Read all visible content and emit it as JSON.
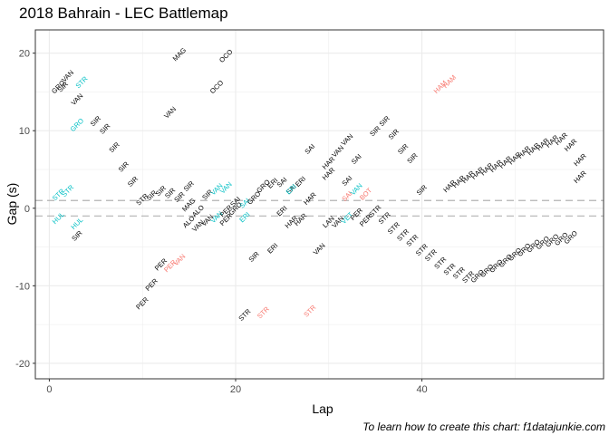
{
  "chart_data": {
    "type": "scatter",
    "title": "2018 Bahrain - LEC Battlemap",
    "xlabel": "Lap",
    "ylabel": "Gap (s)",
    "caption": "To learn how to create this chart: f1datajunkie.com",
    "xlim": [
      -1.5,
      59.5
    ],
    "ylim": [
      -22,
      23
    ],
    "xticks": [
      0,
      20,
      40
    ],
    "yticks": [
      -20,
      -10,
      0,
      10,
      20
    ],
    "grid": true,
    "legend": "none",
    "reference_lines": [
      1,
      -1
    ],
    "colors": {
      "default": "#000000",
      "highlight_a": "#00bfc4",
      "highlight_b": "#f8766d",
      "reference": "#b3b3b3",
      "grid": "#ebebeb",
      "border": "#333333"
    },
    "labels": [
      {
        "x": 1,
        "y": 15.6,
        "text": "GRO",
        "color": "#000000"
      },
      {
        "x": 1.5,
        "y": 15.6,
        "text": "SIR",
        "color": "#000000"
      },
      {
        "x": 2,
        "y": 17,
        "text": "VAN",
        "color": "#000000"
      },
      {
        "x": 3.5,
        "y": 16.2,
        "text": "STR",
        "color": "#00bfc4"
      },
      {
        "x": 3,
        "y": 14,
        "text": "VAN",
        "color": "#000000"
      },
      {
        "x": 5,
        "y": 11.2,
        "text": "SIR",
        "color": "#000000"
      },
      {
        "x": 3,
        "y": 10.7,
        "text": "GRO",
        "color": "#00bfc4"
      },
      {
        "x": 6,
        "y": 10.2,
        "text": "SIR",
        "color": "#000000"
      },
      {
        "x": 7,
        "y": 7.8,
        "text": "SIR",
        "color": "#000000"
      },
      {
        "x": 8,
        "y": 5.3,
        "text": "SIR",
        "color": "#000000"
      },
      {
        "x": 9,
        "y": 3.4,
        "text": "SIR",
        "color": "#000000"
      },
      {
        "x": 1,
        "y": 1.7,
        "text": "STR",
        "color": "#00bfc4"
      },
      {
        "x": 2,
        "y": 2.2,
        "text": "STR",
        "color": "#00bfc4"
      },
      {
        "x": 1,
        "y": -1.3,
        "text": "HUL",
        "color": "#00bfc4"
      },
      {
        "x": 3,
        "y": -2,
        "text": "HUL",
        "color": "#00bfc4"
      },
      {
        "x": 3,
        "y": -3.6,
        "text": "SIR",
        "color": "#000000"
      },
      {
        "x": 10,
        "y": 1.1,
        "text": "STR",
        "color": "#000000"
      },
      {
        "x": 11,
        "y": 1.6,
        "text": "SIR",
        "color": "#000000"
      },
      {
        "x": 12,
        "y": 2.2,
        "text": "SIR",
        "color": "#000000"
      },
      {
        "x": 14,
        "y": 19.8,
        "text": "MAG",
        "color": "#000000"
      },
      {
        "x": 19,
        "y": 19.6,
        "text": "OCO",
        "color": "#000000"
      },
      {
        "x": 18,
        "y": 15.6,
        "text": "OCO",
        "color": "#000000"
      },
      {
        "x": 13,
        "y": 12.3,
        "text": "VAN",
        "color": "#000000"
      },
      {
        "x": 13,
        "y": 1.9,
        "text": "SIR",
        "color": "#000000"
      },
      {
        "x": 14,
        "y": 1.4,
        "text": "SIR",
        "color": "#000000"
      },
      {
        "x": 15,
        "y": 2.8,
        "text": "SIR",
        "color": "#000000"
      },
      {
        "x": 15,
        "y": 0.4,
        "text": "MAG",
        "color": "#000000"
      },
      {
        "x": 16,
        "y": -0.4,
        "text": "ALO",
        "color": "#000000"
      },
      {
        "x": 17,
        "y": 1.7,
        "text": "SIR",
        "color": "#000000"
      },
      {
        "x": 18,
        "y": 2.4,
        "text": "VAN",
        "color": "#00bfc4"
      },
      {
        "x": 19,
        "y": 2.6,
        "text": "VAN",
        "color": "#00bfc4"
      },
      {
        "x": 15,
        "y": -1.8,
        "text": "ALO",
        "color": "#000000"
      },
      {
        "x": 16,
        "y": -2.3,
        "text": "VAN",
        "color": "#000000"
      },
      {
        "x": 17,
        "y": -1.6,
        "text": "VAN",
        "color": "#000000"
      },
      {
        "x": 18,
        "y": -1.2,
        "text": "VAN",
        "color": "#00bfc4"
      },
      {
        "x": 19,
        "y": -1.5,
        "text": "PER",
        "color": "#000000"
      },
      {
        "x": 19,
        "y": -0.4,
        "text": "PER",
        "color": "#000000"
      },
      {
        "x": 20,
        "y": -0.1,
        "text": "GRO",
        "color": "#000000"
      },
      {
        "x": 20,
        "y": 0.8,
        "text": "SAI",
        "color": "#000000"
      },
      {
        "x": 21,
        "y": 0.6,
        "text": "SAI",
        "color": "#00bfc4"
      },
      {
        "x": 21,
        "y": -1.2,
        "text": "ERI",
        "color": "#00bfc4"
      },
      {
        "x": 22,
        "y": 1.3,
        "text": "GRO",
        "color": "#000000"
      },
      {
        "x": 23,
        "y": 2.8,
        "text": "GRO",
        "color": "#000000"
      },
      {
        "x": 24,
        "y": 3.2,
        "text": "ERI",
        "color": "#000000"
      },
      {
        "x": 25,
        "y": 3.3,
        "text": "SAI",
        "color": "#000000"
      },
      {
        "x": 26,
        "y": 2.4,
        "text": "SAI",
        "color": "#000000"
      },
      {
        "x": 26,
        "y": 2.4,
        "text": "ERI",
        "color": "#00bfc4"
      },
      {
        "x": 27,
        "y": 3.4,
        "text": "ERI",
        "color": "#000000"
      },
      {
        "x": 28,
        "y": 7.6,
        "text": "SAI",
        "color": "#000000"
      },
      {
        "x": 28,
        "y": 1.2,
        "text": "HAR",
        "color": "#000000"
      },
      {
        "x": 25,
        "y": -0.4,
        "text": "ERI",
        "color": "#000000"
      },
      {
        "x": 26,
        "y": -1.8,
        "text": "HAR",
        "color": "#000000"
      },
      {
        "x": 27,
        "y": -1.5,
        "text": "HAR",
        "color": "#000000"
      },
      {
        "x": 30,
        "y": 4.4,
        "text": "HAR",
        "color": "#000000"
      },
      {
        "x": 30,
        "y": 5.8,
        "text": "HAR",
        "color": "#000000"
      },
      {
        "x": 31,
        "y": 7.3,
        "text": "VAN",
        "color": "#000000"
      },
      {
        "x": 32,
        "y": 8.8,
        "text": "VAN",
        "color": "#000000"
      },
      {
        "x": 33,
        "y": 6.3,
        "text": "SAI",
        "color": "#000000"
      },
      {
        "x": 32,
        "y": 3.5,
        "text": "SAI",
        "color": "#000000"
      },
      {
        "x": 32,
        "y": 1.5,
        "text": "SAI",
        "color": "#f8766d"
      },
      {
        "x": 34,
        "y": 1.8,
        "text": "BOT",
        "color": "#f8766d"
      },
      {
        "x": 33,
        "y": 2.4,
        "text": "VAN",
        "color": "#00bfc4"
      },
      {
        "x": 31,
        "y": -1.8,
        "text": "VAN",
        "color": "#000000"
      },
      {
        "x": 32,
        "y": -1.3,
        "text": "VET",
        "color": "#00bfc4"
      },
      {
        "x": 33,
        "y": -0.8,
        "text": "PER",
        "color": "#000000"
      },
      {
        "x": 34,
        "y": -1.6,
        "text": "PER",
        "color": "#000000"
      },
      {
        "x": 35,
        "y": -0.4,
        "text": "STR",
        "color": "#000000"
      },
      {
        "x": 30,
        "y": -1.8,
        "text": "LAN",
        "color": "#000000"
      },
      {
        "x": 29,
        "y": -5.3,
        "text": "VAN",
        "color": "#000000"
      },
      {
        "x": 22,
        "y": -6.3,
        "text": "SIR",
        "color": "#000000"
      },
      {
        "x": 24,
        "y": -5.2,
        "text": "ERI",
        "color": "#000000"
      },
      {
        "x": 36,
        "y": -1.3,
        "text": "STR",
        "color": "#000000"
      },
      {
        "x": 37,
        "y": -2.6,
        "text": "STR",
        "color": "#000000"
      },
      {
        "x": 38,
        "y": -3.5,
        "text": "STR",
        "color": "#000000"
      },
      {
        "x": 39,
        "y": -4.2,
        "text": "STR",
        "color": "#000000"
      },
      {
        "x": 40,
        "y": -5.4,
        "text": "STR",
        "color": "#000000"
      },
      {
        "x": 41,
        "y": -6.1,
        "text": "STR",
        "color": "#000000"
      },
      {
        "x": 42,
        "y": -7.1,
        "text": "STR",
        "color": "#000000"
      },
      {
        "x": 43,
        "y": -7.9,
        "text": "STR",
        "color": "#000000"
      },
      {
        "x": 44,
        "y": -8.4,
        "text": "STR",
        "color": "#000000"
      },
      {
        "x": 45,
        "y": -8.9,
        "text": "STR",
        "color": "#000000"
      },
      {
        "x": 46,
        "y": -8.8,
        "text": "GRO",
        "color": "#000000"
      },
      {
        "x": 47,
        "y": -8.1,
        "text": "GRO",
        "color": "#000000"
      },
      {
        "x": 48,
        "y": -7.5,
        "text": "GRO",
        "color": "#000000"
      },
      {
        "x": 49,
        "y": -6.8,
        "text": "GRO",
        "color": "#000000"
      },
      {
        "x": 50,
        "y": -6.0,
        "text": "GRO",
        "color": "#000000"
      },
      {
        "x": 51,
        "y": -5.4,
        "text": "GRO",
        "color": "#000000"
      },
      {
        "x": 52,
        "y": -4.9,
        "text": "GRO",
        "color": "#000000"
      },
      {
        "x": 53,
        "y": -4.5,
        "text": "GRO",
        "color": "#000000"
      },
      {
        "x": 54,
        "y": -4.2,
        "text": "GRO",
        "color": "#000000"
      },
      {
        "x": 55,
        "y": -4.0,
        "text": "GRO",
        "color": "#000000"
      },
      {
        "x": 56,
        "y": -3.8,
        "text": "GRO",
        "color": "#000000"
      },
      {
        "x": 35,
        "y": 9.9,
        "text": "SIR",
        "color": "#000000"
      },
      {
        "x": 36,
        "y": 11.2,
        "text": "SIR",
        "color": "#000000"
      },
      {
        "x": 37,
        "y": 9.5,
        "text": "SIR",
        "color": "#000000"
      },
      {
        "x": 38,
        "y": 7.6,
        "text": "SIR",
        "color": "#000000"
      },
      {
        "x": 39,
        "y": 6.4,
        "text": "SIR",
        "color": "#000000"
      },
      {
        "x": 40,
        "y": 2.3,
        "text": "SIR",
        "color": "#000000"
      },
      {
        "x": 42,
        "y": 15.6,
        "text": "HAM",
        "color": "#f8766d"
      },
      {
        "x": 43,
        "y": 16.3,
        "text": "HAM",
        "color": "#f8766d"
      },
      {
        "x": 43,
        "y": 2.8,
        "text": "HAR",
        "color": "#000000"
      },
      {
        "x": 44,
        "y": 3.4,
        "text": "HAR",
        "color": "#000000"
      },
      {
        "x": 45,
        "y": 4.0,
        "text": "HAR",
        "color": "#000000"
      },
      {
        "x": 46,
        "y": 4.5,
        "text": "HAR",
        "color": "#000000"
      },
      {
        "x": 47,
        "y": 5.0,
        "text": "HAR",
        "color": "#000000"
      },
      {
        "x": 48,
        "y": 5.4,
        "text": "HAR",
        "color": "#000000"
      },
      {
        "x": 49,
        "y": 5.9,
        "text": "HAR",
        "color": "#000000"
      },
      {
        "x": 50,
        "y": 6.4,
        "text": "HAR",
        "color": "#000000"
      },
      {
        "x": 51,
        "y": 7.2,
        "text": "HAR",
        "color": "#000000"
      },
      {
        "x": 52,
        "y": 7.6,
        "text": "HAR",
        "color": "#000000"
      },
      {
        "x": 53,
        "y": 8.2,
        "text": "HAR",
        "color": "#000000"
      },
      {
        "x": 54,
        "y": 8.6,
        "text": "HAR",
        "color": "#000000"
      },
      {
        "x": 55,
        "y": 8.9,
        "text": "HAR",
        "color": "#000000"
      },
      {
        "x": 56,
        "y": 8.1,
        "text": "HAR",
        "color": "#000000"
      },
      {
        "x": 57,
        "y": 6.2,
        "text": "HAR",
        "color": "#000000"
      },
      {
        "x": 57,
        "y": 4.0,
        "text": "HAR",
        "color": "#000000"
      },
      {
        "x": 12,
        "y": -7.3,
        "text": "PER",
        "color": "#000000"
      },
      {
        "x": 13,
        "y": -7.5,
        "text": "PER",
        "color": "#f8766d"
      },
      {
        "x": 14,
        "y": -6.7,
        "text": "VAN",
        "color": "#f8766d"
      },
      {
        "x": 11,
        "y": -9.9,
        "text": "PER",
        "color": "#000000"
      },
      {
        "x": 10,
        "y": -12.3,
        "text": "PER",
        "color": "#000000"
      },
      {
        "x": 21,
        "y": -13.8,
        "text": "STR",
        "color": "#000000"
      },
      {
        "x": 23,
        "y": -13.5,
        "text": "STR",
        "color": "#f8766d"
      },
      {
        "x": 28,
        "y": -13.3,
        "text": "STR",
        "color": "#f8766d"
      }
    ]
  }
}
